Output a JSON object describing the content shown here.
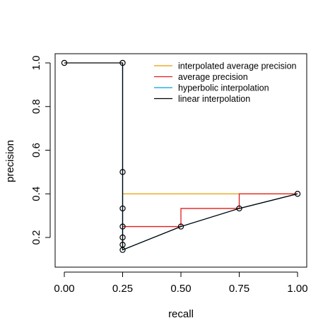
{
  "chart_data": {
    "type": "line",
    "xlabel": "recall",
    "ylabel": "precision",
    "xlim": [
      0,
      1
    ],
    "ylim": [
      0.14,
      1.0
    ],
    "x_ticks": [
      {
        "value": 0.0,
        "label": "0.00"
      },
      {
        "value": 0.25,
        "label": "0.25"
      },
      {
        "value": 0.5,
        "label": "0.50"
      },
      {
        "value": 0.75,
        "label": "0.75"
      },
      {
        "value": 1.0,
        "label": "1.00"
      }
    ],
    "y_ticks": [
      {
        "value": 0.2,
        "label": "0.2"
      },
      {
        "value": 0.4,
        "label": "0.4"
      },
      {
        "value": 0.6,
        "label": "0.6"
      },
      {
        "value": 0.8,
        "label": "0.8"
      },
      {
        "value": 1.0,
        "label": "1.0"
      }
    ],
    "grid": false,
    "legend_position": "top-right",
    "series": [
      {
        "name": "interpolated average precision",
        "color": "#E69F00",
        "x": [
          0.25,
          1.0
        ],
        "y": [
          0.4,
          0.4
        ]
      },
      {
        "name": "average precision",
        "color": "#E41A1C",
        "x": [
          0.25,
          0.5,
          0.5,
          0.75,
          0.75,
          1.0
        ],
        "y": [
          0.25,
          0.25,
          0.333,
          0.333,
          0.4,
          0.4
        ]
      },
      {
        "name": "hyperbolic interpolation",
        "color": "#00A0E0",
        "x": [
          0.25,
          0.25,
          0.5,
          0.75,
          1.0
        ],
        "y": [
          1.0,
          0.143,
          0.25,
          0.333,
          0.4
        ]
      },
      {
        "name": "linear interpolation",
        "color": "#000000",
        "x": [
          0.0,
          0.25,
          0.25,
          0.5,
          0.75,
          1.0
        ],
        "y": [
          1.0,
          1.0,
          0.143,
          0.25,
          0.333,
          0.4
        ]
      }
    ],
    "points": {
      "x": [
        0.0,
        0.25,
        0.25,
        0.25,
        0.25,
        0.25,
        0.25,
        0.25,
        0.5,
        0.75,
        1.0
      ],
      "y": [
        1.0,
        1.0,
        0.5,
        0.333,
        0.25,
        0.2,
        0.167,
        0.143,
        0.25,
        0.333,
        0.4
      ]
    },
    "point_color": "#000000"
  }
}
